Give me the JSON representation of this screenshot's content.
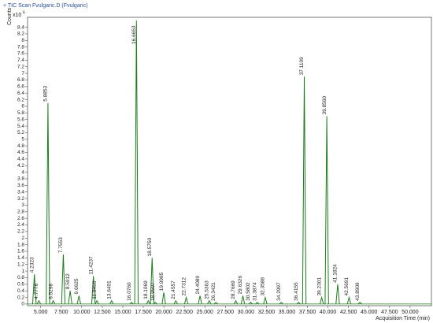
{
  "chart_data": {
    "type": "chromatogram",
    "title": "+ TIC Scan Fvulgaric.D (Fvulgaric)",
    "y_label": "Counts",
    "y_scale_label": "x10",
    "y_scale_exponent": "6",
    "x_label": "Acquisition Time (min)",
    "color": "#1f7a1f",
    "x": [
      4.2323,
      4.7776,
      5.8853,
      6.5298,
      7.7553,
      8.5912,
      9.6625,
      11.4237,
      11.8455,
      13.6401,
      16.076,
      16.6653,
      18.1069,
      18.575,
      18.9597,
      19.9985,
      21.4557,
      22.7312,
      24.4089,
      25.5363,
      26.3421,
      28.7669,
      29.6326,
      30.5802,
      31.3874,
      32.3588,
      34.2997,
      36.4155,
      37.1109,
      39.2301,
      39.856,
      41.1824,
      42.5691,
      43.8909
    ],
    "x_labels": [
      "4.2323",
      "4.7776",
      "5.8853",
      "6.5298",
      "7.7553",
      "8.5912",
      "9.6625",
      "11.4237",
      "11.8455",
      "13.6401",
      "16.0760",
      "16.6653",
      "18.1069",
      "18.5750",
      "18.9597",
      "19.9985",
      "21.4557",
      "22.7312",
      "24.4089",
      "25.5363",
      "26.3421",
      "28.7669",
      "29.6326",
      "30.5802",
      "31.3874",
      "32.3588",
      "34.2997",
      "36.4155",
      "37.1109",
      "39.2301",
      "39.8560",
      "41.1824",
      "42.5691",
      "43.8909"
    ],
    "values": [
      0.9,
      0.1,
      6.1,
      0.1,
      1.5,
      0.4,
      0.25,
      0.85,
      0.1,
      0.1,
      0.05,
      8.6,
      0.1,
      1.4,
      0.05,
      0.35,
      0.1,
      0.2,
      0.25,
      0.1,
      0.05,
      0.1,
      0.25,
      0.05,
      0.05,
      0.2,
      0.05,
      0.05,
      6.9,
      0.2,
      5.7,
      0.6,
      0.2,
      0.05
    ],
    "xlim": [
      3.4,
      52.6
    ],
    "ylim": [
      -0.05,
      8.7
    ],
    "xticks": [
      {
        "value": 5,
        "label": "5.000"
      },
      {
        "value": 7.5,
        "label": "7.500"
      },
      {
        "value": 10,
        "label": "10.000"
      },
      {
        "value": 12.5,
        "label": "12.500"
      },
      {
        "value": 15,
        "label": "15.000"
      },
      {
        "value": 17.5,
        "label": "17.500"
      },
      {
        "value": 20,
        "label": "20.000"
      },
      {
        "value": 22.5,
        "label": "22.500"
      },
      {
        "value": 25,
        "label": "25.000"
      },
      {
        "value": 27.5,
        "label": "27.500"
      },
      {
        "value": 30,
        "label": "30.000"
      },
      {
        "value": 32.5,
        "label": "32.500"
      },
      {
        "value": 35,
        "label": "35.000"
      },
      {
        "value": 37.5,
        "label": "37.500"
      },
      {
        "value": 40,
        "label": "40.000"
      },
      {
        "value": 42.5,
        "label": "42.500"
      },
      {
        "value": 45,
        "label": "45.000"
      },
      {
        "value": 47.5,
        "label": "47.500"
      },
      {
        "value": 50,
        "label": "50.000"
      }
    ],
    "yticks": [
      0,
      0.2,
      0.4,
      0.6,
      0.8,
      1,
      1.2,
      1.4,
      1.6,
      1.8,
      2,
      2.2,
      2.4,
      2.6,
      2.8,
      3,
      3.2,
      3.4,
      3.6,
      3.8,
      4,
      4.2,
      4.4,
      4.6,
      4.8,
      5,
      5.2,
      5.4,
      5.6,
      5.8,
      6,
      6.2,
      6.4,
      6.6,
      6.8,
      7,
      7.2,
      7.4,
      7.6,
      7.8,
      8,
      8.2,
      8.4
    ]
  }
}
